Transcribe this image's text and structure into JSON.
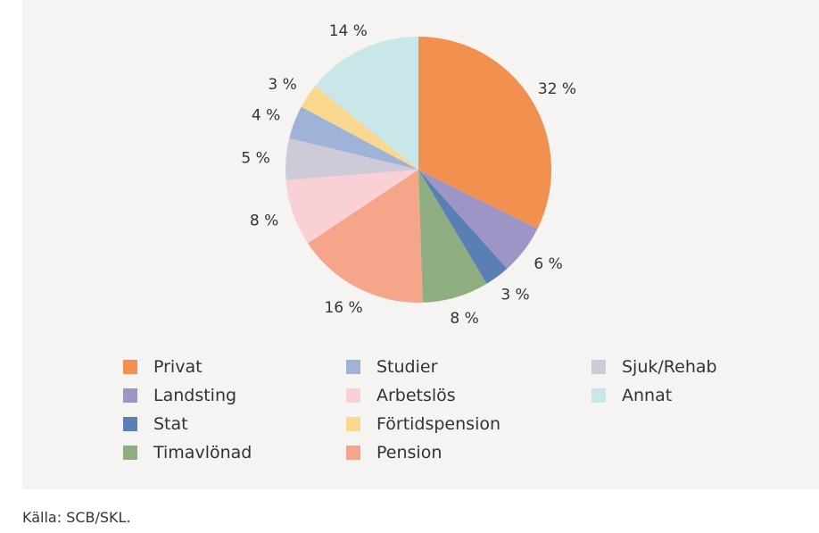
{
  "chart_data": {
    "type": "pie",
    "start_angle_deg": 0,
    "direction": "clockwise",
    "slices": [
      {
        "name": "Privat",
        "value": 32,
        "label": "32 %",
        "color": "#f29050"
      },
      {
        "name": "Landsting",
        "value": 6,
        "label": "6 %",
        "color": "#9e95c7"
      },
      {
        "name": "Stat",
        "value": 3,
        "label": "3 %",
        "color": "#5a7fb5"
      },
      {
        "name": "Timavlönad",
        "value": 8,
        "label": "8 %",
        "color": "#8eae82"
      },
      {
        "name": "Pension",
        "value": 16,
        "label": "16 %",
        "color": "#f4a58a"
      },
      {
        "name": "Arbetslös",
        "value": 8,
        "label": "8 %",
        "color": "#f9d0d6"
      },
      {
        "name": "Sjuk/Rehab",
        "value": 5,
        "label": "5 %",
        "color": "#cfcad8"
      },
      {
        "name": "Studier",
        "value": 4,
        "label": "4 %",
        "color": "#9fb3d8"
      },
      {
        "name": "Förtidspension",
        "value": 3,
        "label": "3 %",
        "color": "#fad88f"
      },
      {
        "name": "Annat",
        "value": 14,
        "label": "14 %",
        "color": "#c9e6e8"
      }
    ],
    "legend_order": [
      "Privat",
      "Landsting",
      "Stat",
      "Timavlönad",
      "Studier",
      "Arbetslös",
      "Förtidspension",
      "Pension",
      "Sjuk/Rehab",
      "Annat"
    ],
    "legend_position": "bottom"
  },
  "source": "Källa: SCB/SKL."
}
